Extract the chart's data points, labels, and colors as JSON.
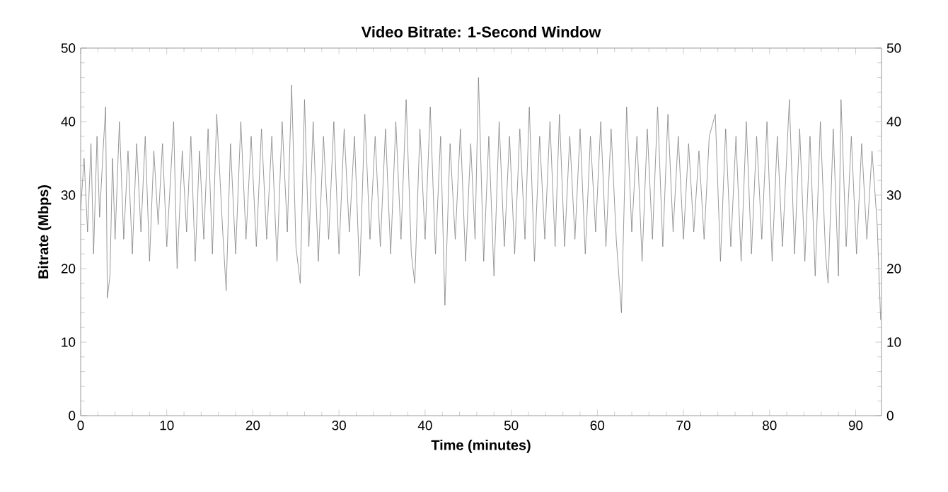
{
  "chart_data": {
    "type": "line",
    "title": "Video Bitrate: 1-Second Window",
    "xlabel": "Time (minutes)",
    "ylabel": "Bitrate (Mbps)",
    "xlim": [
      0,
      93
    ],
    "xticks": [
      0,
      10,
      20,
      30,
      40,
      50,
      60,
      70,
      80,
      90
    ],
    "ylim": [
      0,
      50
    ],
    "yticks": [
      0,
      10,
      20,
      30,
      40,
      50
    ],
    "y2lim": [
      0,
      50
    ],
    "y2ticks": [
      0,
      10,
      20,
      30,
      40,
      50
    ],
    "grid": false,
    "legend": false,
    "marker": "none",
    "line_style": "solid",
    "series": [
      {
        "color": "#808080",
        "x": [
          0,
          0.4,
          0.8,
          1.2,
          1.5,
          1.9,
          2.2,
          2.6,
          2.9,
          3.1,
          3.4,
          3.7,
          4.0,
          4.5,
          5.0,
          5.5,
          6.0,
          6.5,
          7.0,
          7.5,
          8.0,
          8.5,
          9.0,
          9.5,
          10.0,
          10.8,
          11.2,
          11.8,
          12.3,
          12.8,
          13.3,
          13.8,
          14.3,
          14.8,
          15.3,
          15.8,
          16.5,
          16.9,
          17.4,
          18.0,
          18.6,
          19.2,
          19.8,
          20.4,
          21.0,
          21.6,
          22.2,
          22.8,
          23.4,
          24.0,
          24.5,
          25.0,
          25.5,
          26.0,
          26.5,
          27.0,
          27.6,
          28.2,
          28.8,
          29.4,
          30.0,
          30.6,
          31.2,
          31.8,
          32.4,
          33.0,
          33.6,
          34.2,
          34.8,
          35.4,
          36.0,
          36.6,
          37.2,
          37.8,
          38.4,
          38.8,
          39.4,
          40.0,
          40.6,
          41.2,
          41.8,
          42.3,
          42.9,
          43.5,
          44.1,
          44.7,
          45.3,
          45.8,
          46.2,
          46.8,
          47.4,
          48.0,
          48.6,
          49.2,
          49.8,
          50.4,
          51.0,
          51.6,
          52.1,
          52.7,
          53.3,
          53.9,
          54.5,
          55.1,
          55.6,
          56.2,
          56.8,
          57.4,
          58.0,
          58.6,
          59.2,
          59.8,
          60.4,
          61.0,
          61.6,
          62.2,
          62.8,
          63.4,
          64.0,
          64.6,
          65.2,
          65.8,
          66.4,
          67.0,
          67.6,
          68.2,
          68.8,
          69.4,
          70.0,
          70.6,
          71.2,
          71.8,
          72.4,
          73.0,
          73.7,
          74.3,
          74.9,
          75.5,
          76.1,
          76.7,
          77.3,
          77.9,
          78.5,
          79.1,
          79.7,
          80.3,
          80.9,
          81.5,
          82.3,
          82.9,
          83.5,
          84.1,
          84.7,
          85.3,
          85.9,
          86.5,
          86.8,
          87.4,
          88.0,
          88.3,
          88.9,
          89.5,
          90.1,
          90.7,
          91.3,
          91.9,
          92.5,
          92.9
        ],
        "values": [
          28,
          35,
          25,
          37,
          22,
          38,
          27,
          36,
          42,
          16,
          19,
          35,
          24,
          40,
          24,
          36,
          22,
          37,
          25,
          38,
          21,
          36,
          26,
          37,
          23,
          40,
          20,
          36,
          25,
          38,
          21,
          36,
          24,
          39,
          22,
          41,
          25,
          17,
          37,
          22,
          40,
          24,
          38,
          23,
          39,
          24,
          38,
          21,
          40,
          25,
          45,
          23,
          18,
          43,
          23,
          40,
          21,
          38,
          24,
          40,
          22,
          39,
          25,
          38,
          19,
          41,
          24,
          38,
          23,
          39,
          22,
          40,
          24,
          43,
          22,
          18,
          39,
          24,
          42,
          22,
          38,
          15,
          37,
          24,
          39,
          21,
          37,
          24,
          46,
          21,
          38,
          19,
          40,
          23,
          38,
          22,
          39,
          24,
          42,
          21,
          38,
          24,
          40,
          23,
          41,
          23,
          38,
          24,
          39,
          22,
          38,
          25,
          40,
          23,
          39,
          24,
          14,
          42,
          25,
          38,
          21,
          39,
          24,
          42,
          23,
          41,
          25,
          38,
          24,
          37,
          25,
          36,
          24,
          38,
          41,
          21,
          39,
          23,
          38,
          21,
          40,
          22,
          38,
          24,
          40,
          21,
          38,
          23,
          43,
          22,
          39,
          21,
          38,
          19,
          40,
          22,
          18,
          39,
          19,
          43,
          23,
          38,
          22,
          37,
          24,
          36,
          26,
          13
        ]
      }
    ]
  }
}
